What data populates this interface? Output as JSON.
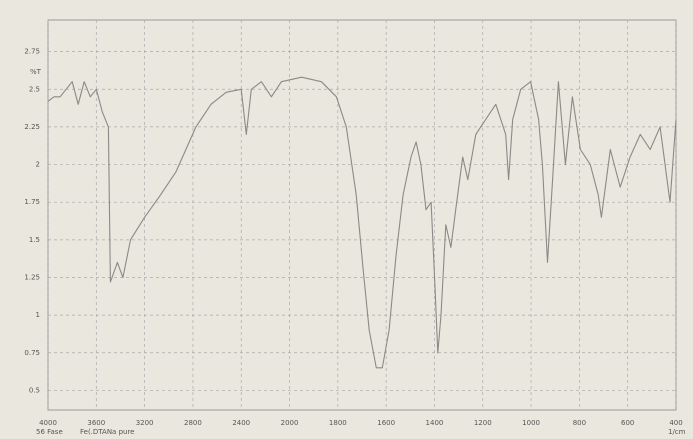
{
  "chart_data": {
    "type": "line",
    "ylabel": "%T",
    "xlabel": "1/cm",
    "notes": [
      "56 Fase",
      "Fe(.DTANa pure"
    ],
    "x": [
      4000,
      3950,
      3900,
      3850,
      3800,
      3750,
      3700,
      3650,
      3600,
      3550,
      3500,
      3483,
      3425,
      3380,
      3317,
      3200,
      3067,
      2942,
      2858,
      2775,
      2650,
      2525,
      2400,
      2358,
      2317,
      2233,
      2150,
      2067,
      1950,
      1868,
      1806,
      1765,
      1724,
      1695,
      1670,
      1641,
      1616,
      1588,
      1559,
      1530,
      1497,
      1476,
      1456,
      1435,
      1414,
      1398,
      1386,
      1373,
      1353,
      1332,
      1312,
      1283,
      1262,
      1229,
      1188,
      1146,
      1105,
      1093,
      1076,
      1043,
      1002,
      969,
      953,
      932,
      911,
      887,
      858,
      829,
      796,
      755,
      722,
      709,
      672,
      631,
      590,
      548,
      507,
      466,
      425,
      400
    ],
    "values": [
      2.42,
      2.45,
      2.45,
      2.5,
      2.55,
      2.4,
      2.55,
      2.45,
      2.5,
      2.35,
      2.25,
      1.22,
      1.35,
      1.25,
      1.5,
      1.65,
      1.8,
      1.95,
      2.1,
      2.25,
      2.4,
      2.48,
      2.5,
      2.2,
      2.5,
      2.55,
      2.45,
      2.55,
      2.58,
      2.55,
      2.45,
      2.25,
      1.8,
      1.3,
      0.9,
      0.65,
      0.65,
      0.9,
      1.4,
      1.8,
      2.05,
      2.15,
      2.0,
      1.7,
      1.75,
      1.2,
      0.75,
      1.0,
      1.6,
      1.45,
      1.7,
      2.05,
      1.9,
      2.2,
      2.3,
      2.4,
      2.2,
      1.9,
      2.3,
      2.5,
      2.55,
      2.3,
      2.0,
      1.35,
      1.9,
      2.55,
      2.0,
      2.45,
      2.1,
      2.0,
      1.8,
      1.65,
      2.1,
      1.85,
      2.05,
      2.2,
      2.1,
      2.25,
      1.75,
      2.3
    ],
    "color": "#8a8a86",
    "xlim": [
      4000,
      400
    ],
    "xticks": [
      4000,
      3600,
      3200,
      2800,
      2400,
      2000,
      1800,
      1600,
      1400,
      1200,
      1000,
      800,
      600,
      400
    ],
    "ylim": [
      0.37,
      2.96
    ],
    "yticks": [
      0.5,
      0.75,
      1,
      1.25,
      1.5,
      1.75,
      2,
      2.25,
      2.5,
      2.75
    ],
    "grid": true
  }
}
